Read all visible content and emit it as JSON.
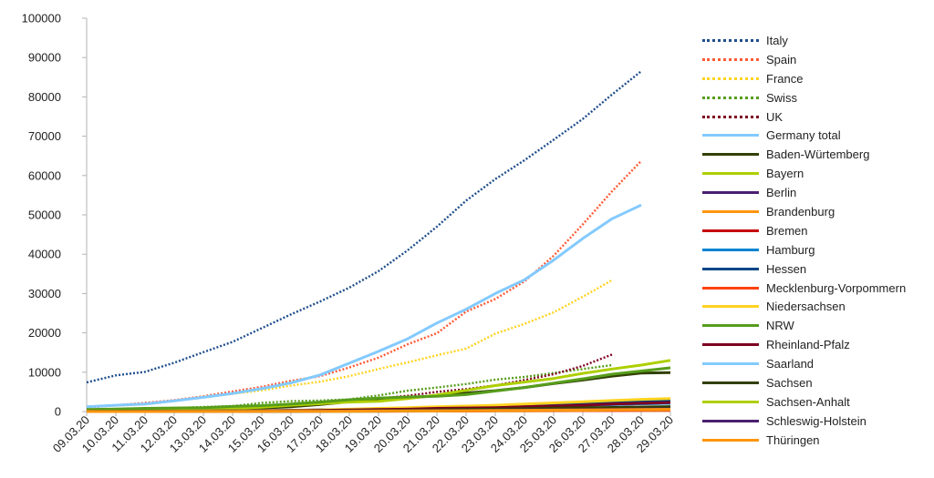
{
  "chart_data": {
    "type": "line",
    "title": "",
    "xlabel": "",
    "ylabel": "",
    "ylim": [
      0,
      100000
    ],
    "yticks": [
      "0",
      "10000",
      "20000",
      "30000",
      "40000",
      "50000",
      "60000",
      "70000",
      "80000",
      "90000",
      "100000"
    ],
    "categories": [
      "09.03.20",
      "10.03.20",
      "11.03.20",
      "12.03.20",
      "13.03.20",
      "14.03.20",
      "15.03.20",
      "16.03.20",
      "17.03.20",
      "18.03.20",
      "19.03.20",
      "20.03.20",
      "21.03.20",
      "22.03.20",
      "23.03.20",
      "24.03.20",
      "25.03.20",
      "26.03.20",
      "27.03.20",
      "28.03.20",
      "29.03.20"
    ],
    "grid": false,
    "legend_position": "right",
    "series": [
      {
        "name": "Italy",
        "color": "#1f4e8c",
        "dash": "dotted",
        "values": [
          7400,
          9200,
          10100,
          12400,
          15100,
          17700,
          21200,
          24700,
          27980,
          31500,
          35700,
          41000,
          47000,
          53600,
          59100,
          63900,
          69100,
          74400,
          80600,
          86500,
          null
        ]
      },
      {
        "name": "Spain",
        "color": "#ff5a36",
        "dash": "dotted",
        "values": [
          1000,
          1600,
          2200,
          2900,
          3900,
          5100,
          6300,
          7800,
          9000,
          11200,
          13700,
          17100,
          19900,
          25400,
          28600,
          33100,
          39600,
          47600,
          56000,
          63700,
          null
        ]
      },
      {
        "name": "France",
        "color": "#ffd320",
        "dash": "dotted",
        "values": [
          1200,
          1500,
          1800,
          2700,
          3700,
          4500,
          5400,
          6600,
          7600,
          9000,
          10800,
          12500,
          14300,
          16000,
          19800,
          22300,
          25200,
          29200,
          33400,
          null,
          null
        ]
      },
      {
        "name": "Swiss",
        "color": "#579d1c",
        "dash": "dotted",
        "values": [
          330,
          500,
          650,
          860,
          1150,
          1400,
          2200,
          2650,
          2800,
          3100,
          4100,
          5300,
          6100,
          7000,
          8100,
          8800,
          9800,
          10800,
          11800,
          null,
          null
        ]
      },
      {
        "name": "UK",
        "color": "#7e0021",
        "dash": "dotted",
        "values": [
          270,
          370,
          460,
          590,
          800,
          1100,
          1140,
          1540,
          1950,
          2600,
          3300,
          4000,
          5000,
          5700,
          6650,
          8000,
          9500,
          11600,
          14500,
          null,
          null
        ]
      },
      {
        "name": "Germany total",
        "color": "#83caff",
        "dash": "solid",
        "values": [
          1200,
          1600,
          1900,
          2700,
          3600,
          4600,
          5800,
          7300,
          9300,
          12300,
          15300,
          18500,
          22500,
          26000,
          30000,
          33500,
          38500,
          44000,
          49000,
          52500,
          null
        ]
      },
      {
        "name": "Baden-Würtemberg",
        "color": "#314004",
        "dash": "solid",
        "values": [
          200,
          280,
          350,
          450,
          550,
          700,
          900,
          1200,
          1800,
          2500,
          3000,
          3500,
          4000,
          4700,
          5300,
          6100,
          7100,
          8000,
          9000,
          9800,
          9900
        ]
      },
      {
        "name": "Bayern",
        "color": "#aecf00",
        "dash": "solid",
        "values": [
          250,
          300,
          350,
          450,
          600,
          800,
          1100,
          1600,
          2000,
          2400,
          2600,
          3300,
          4200,
          5400,
          6600,
          7500,
          8400,
          9700,
          10800,
          11800,
          13000
        ]
      },
      {
        "name": "Berlin",
        "color": "#4b1f6f",
        "dash": "solid",
        "values": [
          40,
          50,
          70,
          100,
          150,
          200,
          250,
          320,
          400,
          500,
          600,
          700,
          800,
          900,
          1050,
          1200,
          1400,
          1600,
          1800,
          2000,
          2100
        ]
      },
      {
        "name": "Brandenburg",
        "color": "#ff950e",
        "dash": "solid",
        "values": [
          5,
          10,
          15,
          20,
          30,
          40,
          50,
          60,
          80,
          100,
          130,
          170,
          210,
          260,
          310,
          370,
          430,
          500,
          570,
          640,
          700
        ]
      },
      {
        "name": "Bremen",
        "color": "#c5000b",
        "dash": "solid",
        "values": [
          5,
          10,
          15,
          20,
          30,
          40,
          50,
          60,
          70,
          90,
          110,
          130,
          150,
          170,
          200,
          220,
          250,
          280,
          300,
          330,
          350
        ]
      },
      {
        "name": "Hamburg",
        "color": "#0084d1",
        "dash": "solid",
        "values": [
          10,
          15,
          20,
          40,
          60,
          80,
          100,
          130,
          200,
          300,
          400,
          550,
          700,
          850,
          1000,
          1200,
          1400,
          1600,
          1800,
          2000,
          2100
        ]
      },
      {
        "name": "Hessen",
        "color": "#004586",
        "dash": "solid",
        "values": [
          15,
          20,
          30,
          50,
          80,
          120,
          200,
          300,
          400,
          500,
          650,
          800,
          950,
          1100,
          1300,
          1500,
          1700,
          2000,
          2300,
          2500,
          2700
        ]
      },
      {
        "name": "Mecklenburg-Vorpommern",
        "color": "#ff420e",
        "dash": "solid",
        "values": [
          5,
          5,
          10,
          10,
          15,
          20,
          25,
          35,
          45,
          60,
          80,
          100,
          120,
          140,
          160,
          180,
          200,
          230,
          260,
          290,
          310
        ]
      },
      {
        "name": "Niedersachsen",
        "color": "#ffd320",
        "dash": "solid",
        "values": [
          20,
          30,
          40,
          60,
          90,
          130,
          200,
          300,
          400,
          600,
          800,
          1000,
          1200,
          1400,
          1600,
          1900,
          2200,
          2500,
          2800,
          3100,
          3300
        ]
      },
      {
        "name": "NRW",
        "color": "#579d1c",
        "dash": "solid",
        "values": [
          500,
          650,
          800,
          900,
          1000,
          1300,
          1500,
          1900,
          2400,
          3000,
          3400,
          3700,
          3900,
          4300,
          5200,
          6100,
          7200,
          8300,
          9500,
          10300,
          11100
        ]
      },
      {
        "name": "Rheinland-Pfalz",
        "color": "#7e0021",
        "dash": "solid",
        "values": [
          15,
          20,
          30,
          50,
          80,
          100,
          150,
          200,
          300,
          400,
          500,
          600,
          800,
          900,
          1000,
          1200,
          1400,
          1600,
          1900,
          2100,
          2300
        ]
      },
      {
        "name": "Saarland",
        "color": "#83caff",
        "dash": "solid",
        "values": [
          5,
          5,
          10,
          10,
          15,
          20,
          30,
          40,
          60,
          80,
          100,
          150,
          200,
          250,
          300,
          350,
          420,
          500,
          580,
          650,
          700
        ]
      },
      {
        "name": "Sachsen",
        "color": "#314004",
        "dash": "solid",
        "values": [
          10,
          15,
          20,
          30,
          40,
          50,
          80,
          100,
          150,
          200,
          250,
          350,
          450,
          550,
          650,
          750,
          850,
          950,
          1050,
          1150,
          1250
        ]
      },
      {
        "name": "Sachsen-Anhalt",
        "color": "#aecf00",
        "dash": "solid",
        "values": [
          5,
          5,
          10,
          10,
          15,
          20,
          30,
          40,
          60,
          80,
          100,
          130,
          160,
          200,
          240,
          280,
          330,
          380,
          430,
          480,
          530
        ]
      },
      {
        "name": "Schleswig-Holstein",
        "color": "#4b1f6f",
        "dash": "solid",
        "values": [
          5,
          10,
          15,
          20,
          30,
          40,
          60,
          80,
          100,
          130,
          160,
          200,
          250,
          300,
          350,
          400,
          450,
          500,
          560,
          620,
          680
        ]
      },
      {
        "name": "Thüringen",
        "color": "#ff950e",
        "dash": "solid",
        "values": [
          5,
          5,
          10,
          15,
          20,
          30,
          40,
          60,
          80,
          100,
          130,
          160,
          200,
          240,
          280,
          320,
          370,
          420,
          470,
          520,
          580
        ]
      }
    ]
  }
}
